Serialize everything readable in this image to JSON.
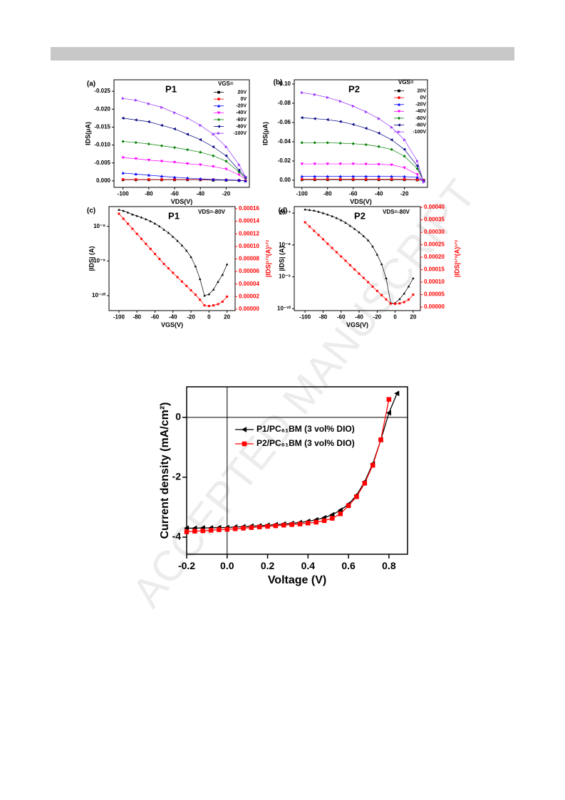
{
  "watermark": "ACCEPTED MANUSCRIPT",
  "chart_data": [
    {
      "type": "line",
      "panel": "(a)",
      "title": "P1",
      "xlabel": "VDS(V)",
      "ylabel": "IDS(μA)",
      "legend_title": "VGS=",
      "legend": "upper right",
      "x": [
        -100,
        -90,
        -80,
        -70,
        -60,
        -50,
        -40,
        -30,
        -20,
        -10,
        -5
      ],
      "xlim": [
        -107,
        -2
      ],
      "xticks": [
        -100,
        -80,
        -60,
        -40,
        -20
      ],
      "ylim": [
        0.0018,
        -0.0282
      ],
      "yticks": [
        -0.025,
        {
          "value": -0.02,
          "label": "-0.020"
        },
        -0.015,
        {
          "value": -0.01,
          "label": "-0.010"
        },
        -0.005,
        {
          "value": 0,
          "label": "0.000"
        }
      ],
      "series": [
        {
          "name": "20V",
          "color": "#000000",
          "marker": "square",
          "values": [
            -0.0003,
            -0.0003,
            -0.0003,
            -0.0003,
            -0.0003,
            -0.0003,
            -0.0003,
            -0.0002,
            -0.0002,
            -0.0001,
            0
          ]
        },
        {
          "name": "0V",
          "color": "#ff0000",
          "marker": "circle",
          "values": [
            -0.0004,
            -0.0004,
            -0.0004,
            -0.0004,
            -0.0004,
            -0.0004,
            -0.0004,
            -0.0004,
            -0.0003,
            -0.0002,
            0
          ]
        },
        {
          "name": "-20V",
          "color": "#0000ff",
          "marker": "triangle-up",
          "values": [
            -0.0022,
            -0.0019,
            -0.0016,
            -0.0013,
            -0.001,
            -0.0008,
            -0.0006,
            -0.0004,
            -0.0003,
            -0.0002,
            0
          ]
        },
        {
          "name": "-40V",
          "color": "#ff00ff",
          "marker": "triangle-down",
          "values": [
            -0.0065,
            -0.0062,
            -0.0058,
            -0.0055,
            -0.0052,
            -0.0048,
            -0.0045,
            -0.004,
            -0.0033,
            -0.0017,
            -0.0005
          ]
        },
        {
          "name": "-60V",
          "color": "#008000",
          "marker": "diamond",
          "values": [
            -0.011,
            -0.0107,
            -0.0103,
            -0.0098,
            -0.0093,
            -0.0087,
            -0.008,
            -0.007,
            -0.0055,
            -0.0025,
            -0.0008
          ]
        },
        {
          "name": "-80V",
          "color": "#000080",
          "marker": "triangle-left",
          "values": [
            -0.0175,
            -0.017,
            -0.0165,
            -0.0155,
            -0.0145,
            -0.013,
            -0.0115,
            -0.0095,
            -0.007,
            -0.003,
            -0.001
          ]
        },
        {
          "name": "-100V",
          "color": "#9933ff",
          "marker": "triangle-right",
          "values": [
            -0.023,
            -0.0225,
            -0.0215,
            -0.0205,
            -0.019,
            -0.0175,
            -0.0155,
            -0.013,
            -0.0095,
            -0.0045,
            -0.0012
          ]
        }
      ]
    },
    {
      "type": "line",
      "panel": "(b)",
      "title": "P2",
      "xlabel": "VDS(V)",
      "ylabel": "IDS(μA)",
      "legend_title": "VGS=",
      "legend": "upper right",
      "x": [
        -100,
        -90,
        -80,
        -70,
        -60,
        -50,
        -40,
        -30,
        -20,
        -10,
        -5
      ],
      "xlim": [
        -106,
        -2
      ],
      "xticks": [
        -100,
        -80,
        -60,
        -40,
        -20
      ],
      "ylim": [
        0.0074,
        -0.1044
      ],
      "yticks": [
        {
          "value": -0.1,
          "label": "-0.10"
        },
        -0.08,
        -0.06,
        -0.04,
        -0.02,
        {
          "value": 0,
          "label": "0.00"
        }
      ],
      "series": [
        {
          "name": "20V",
          "color": "#000000",
          "marker": "square",
          "values": [
            -0.0005,
            -0.0005,
            -0.0005,
            -0.0005,
            -0.0005,
            -0.0005,
            -0.0005,
            -0.0005,
            -0.0005,
            -0.0003,
            0
          ]
        },
        {
          "name": "0V",
          "color": "#ff0000",
          "marker": "circle",
          "values": [
            -0.001,
            -0.001,
            -0.001,
            -0.001,
            -0.001,
            -0.001,
            -0.001,
            -0.001,
            -0.001,
            -0.0006,
            0
          ]
        },
        {
          "name": "-20V",
          "color": "#0000ff",
          "marker": "triangle-up",
          "values": [
            -0.004,
            -0.004,
            -0.004,
            -0.004,
            -0.004,
            -0.004,
            -0.004,
            -0.004,
            -0.0038,
            -0.003,
            0.001
          ]
        },
        {
          "name": "-40V",
          "color": "#ff00ff",
          "marker": "triangle-down",
          "values": [
            -0.017,
            -0.017,
            -0.017,
            -0.017,
            -0.017,
            -0.0168,
            -0.0165,
            -0.016,
            -0.013,
            -0.006,
            0.001
          ]
        },
        {
          "name": "-60V",
          "color": "#008000",
          "marker": "diamond",
          "values": [
            -0.039,
            -0.039,
            -0.039,
            -0.0385,
            -0.038,
            -0.037,
            -0.035,
            -0.032,
            -0.025,
            -0.012,
            0.001
          ]
        },
        {
          "name": "-80V",
          "color": "#000080",
          "marker": "triangle-left",
          "values": [
            -0.065,
            -0.064,
            -0.063,
            -0.061,
            -0.058,
            -0.054,
            -0.049,
            -0.042,
            -0.032,
            -0.015,
            0.001
          ]
        },
        {
          "name": "-100V",
          "color": "#9933ff",
          "marker": "triangle-right",
          "values": [
            -0.091,
            -0.089,
            -0.086,
            -0.082,
            -0.077,
            -0.071,
            -0.064,
            -0.055,
            -0.042,
            -0.02,
            0.002
          ]
        }
      ]
    },
    {
      "type": "line",
      "panel": "(c)",
      "title": "P1",
      "annotation": "VDS=-80V",
      "xlabel": "VGS(V)",
      "ylabel": "|IDS| (A)",
      "y2label": "|IDS|¹ᐟ²(A)¹ᐟ²",
      "x": [
        -100,
        -95,
        -90,
        -85,
        -80,
        -75,
        -70,
        -65,
        -60,
        -55,
        -50,
        -45,
        -40,
        -35,
        -30,
        -25,
        -20,
        -15,
        -10,
        -5,
        0,
        5,
        10,
        15,
        20
      ],
      "xlim": [
        -111,
        29
      ],
      "xticks": [
        -100,
        -80,
        -60,
        -40,
        -20,
        0,
        20
      ],
      "ylog": true,
      "ylim": [
        3.7e-11,
        3.7e-08
      ],
      "yticks": [
        {
          "value": 1e-10,
          "label": "10⁻¹⁰"
        },
        {
          "value": 1e-09,
          "label": "10⁻⁹"
        },
        {
          "value": 1e-08,
          "label": "10⁻⁸"
        }
      ],
      "y2lim": [
        -2.3e-06,
        0.0001634
      ],
      "y2color": "#ff0000",
      "y2ticks": [
        {
          "value": 0,
          "label": "0.00000"
        },
        2e-05,
        4e-05,
        6e-05,
        8e-05,
        {
          "value": 0.0001,
          "label": "0.00010"
        },
        0.00012,
        0.00014,
        0.00016
      ],
      "series": [
        {
          "color": "#000000",
          "marker": "triangle-up",
          "values": [
            3e-08,
            2.8e-08,
            2.5e-08,
            2.2e-08,
            2e-08,
            1.8e-08,
            1.6e-08,
            1.4e-08,
            1.2e-08,
            1e-08,
            8e-09,
            6.5e-09,
            5e-09,
            3.8e-09,
            2.8e-09,
            2e-09,
            1.3e-09,
            7e-10,
            3e-10,
            1e-10,
            1.1e-10,
            1.5e-10,
            2.5e-10,
            4e-10,
            8e-10
          ]
        },
        {
          "color": "#ff0000",
          "marker": "square",
          "axis": "y2",
          "values": [
            0.000152,
            0.000144,
            0.000136,
            0.000128,
            0.00012,
            0.000112,
            0.000104,
            9.6e-05,
            8.8e-05,
            8e-05,
            7.2e-05,
            6.5e-05,
            5.8e-05,
            5.1e-05,
            4.4e-05,
            3.7e-05,
            3e-05,
            2.3e-05,
            1.5e-05,
            6e-06,
            5e-06,
            6e-06,
            8e-06,
            1.2e-05,
            2e-05
          ]
        }
      ]
    },
    {
      "type": "line",
      "panel": "(d)",
      "title": "P2",
      "annotation": "VDS=-80V",
      "xlabel": "VGS(V)",
      "ylabel": "|IDS| (A)",
      "y2label": "|IDS|¹ᐟ²(A)¹ᐟ²",
      "x": [
        -100,
        -95,
        -90,
        -85,
        -80,
        -75,
        -70,
        -65,
        -60,
        -55,
        -50,
        -45,
        -40,
        -35,
        -30,
        -25,
        -20,
        -15,
        -10,
        -5,
        0,
        5,
        10,
        15,
        20
      ],
      "xlim": [
        -112,
        28
      ],
      "xticks": [
        -100,
        -80,
        -60,
        -40,
        -20,
        0,
        20
      ],
      "ylog": true,
      "ylim": [
        8.7e-11,
        1.6e-07
      ],
      "yticks": [
        {
          "value": 1e-10,
          "label": "10⁻¹⁰"
        },
        {
          "value": 1e-09,
          "label": "10⁻⁹"
        },
        {
          "value": 1e-08,
          "label": "10⁻⁸"
        },
        {
          "value": 1e-07,
          "label": "10⁻⁷"
        }
      ],
      "y2lim": [
        -1.4e-05,
        0.000403
      ],
      "y2color": "#ff0000",
      "y2ticks": [
        {
          "value": 0,
          "label": "0.00000"
        },
        5e-05,
        {
          "value": 0.0001,
          "label": "0.00010"
        },
        0.00015,
        {
          "value": 0.0002,
          "label": "0.00020"
        },
        0.00025,
        {
          "value": 0.0003,
          "label": "0.00030"
        },
        0.00035,
        {
          "value": 0.0004,
          "label": "0.00040"
        }
      ],
      "series": [
        {
          "color": "#000000",
          "marker": "triangle-up",
          "values": [
            1.3e-07,
            1.25e-07,
            1.2e-07,
            1.1e-07,
            1e-07,
            9e-08,
            8e-08,
            7e-08,
            6e-08,
            5e-08,
            4e-08,
            3.2e-08,
            2.5e-08,
            1.9e-08,
            1.4e-08,
            9e-09,
            5e-09,
            2.5e-09,
            9e-10,
            1.5e-10,
            1.5e-10,
            2e-10,
            3e-10,
            5e-10,
            9e-10
          ]
        },
        {
          "color": "#ff0000",
          "marker": "square",
          "axis": "y2",
          "values": [
            0.00034,
            0.000323,
            0.000306,
            0.000289,
            0.000272,
            0.000254,
            0.000237,
            0.00022,
            0.000203,
            0.000186,
            0.000168,
            0.000151,
            0.000134,
            0.000117,
            0.0001,
            8.2e-05,
            6.5e-05,
            4.8e-05,
            3.1e-05,
            1.4e-05,
            1.3e-05,
            1.5e-05,
            2e-05,
            3e-05,
            5e-05
          ]
        }
      ]
    },
    {
      "type": "line",
      "xlabel": "Voltage (V)",
      "ylabel": "Current density (mA/cm²)",
      "legend": "upper right",
      "zero_lines": true,
      "x": [
        -0.2,
        -0.16,
        -0.12,
        -0.08,
        -0.04,
        0,
        0.04,
        0.08,
        0.12,
        0.16,
        0.2,
        0.24,
        0.28,
        0.32,
        0.36,
        0.4,
        0.44,
        0.48,
        0.52,
        0.56,
        0.6,
        0.64,
        0.68,
        0.72,
        0.76,
        0.8,
        0.84
      ],
      "xlim": [
        -0.2,
        0.892
      ],
      "xticks": [
        -0.2,
        {
          "value": 0,
          "label": "0.0"
        },
        0.2,
        0.4,
        0.6,
        0.8
      ],
      "ylim": [
        -4.57,
        1.02
      ],
      "yticks": [
        -4,
        -2,
        0
      ],
      "series": [
        {
          "name": "P1/PC₆₁BM (3 vol% DIO)",
          "color": "#000000",
          "marker": "triangle-left",
          "values": [
            -3.7,
            -3.7,
            -3.69,
            -3.69,
            -3.68,
            -3.68,
            -3.66,
            -3.65,
            -3.63,
            -3.62,
            -3.6,
            -3.58,
            -3.56,
            -3.54,
            -3.51,
            -3.47,
            -3.42,
            -3.35,
            -3.25,
            -3.1,
            -2.9,
            -2.6,
            -2.15,
            -1.55,
            -0.75,
            0.15,
            0.8
          ]
        },
        {
          "name": "P2/PC₆₁BM (3 vol% DIO)",
          "color": "#ff0000",
          "marker": "square",
          "values": [
            -3.82,
            -3.8,
            -3.79,
            -3.77,
            -3.75,
            -3.74,
            -3.72,
            -3.7,
            -3.68,
            -3.66,
            -3.64,
            -3.62,
            -3.6,
            -3.58,
            -3.56,
            -3.53,
            -3.5,
            -3.45,
            -3.37,
            -3.22,
            -2.95,
            -2.65,
            -2.2,
            -1.6,
            -0.75,
            0.6,
            null
          ]
        }
      ]
    }
  ]
}
